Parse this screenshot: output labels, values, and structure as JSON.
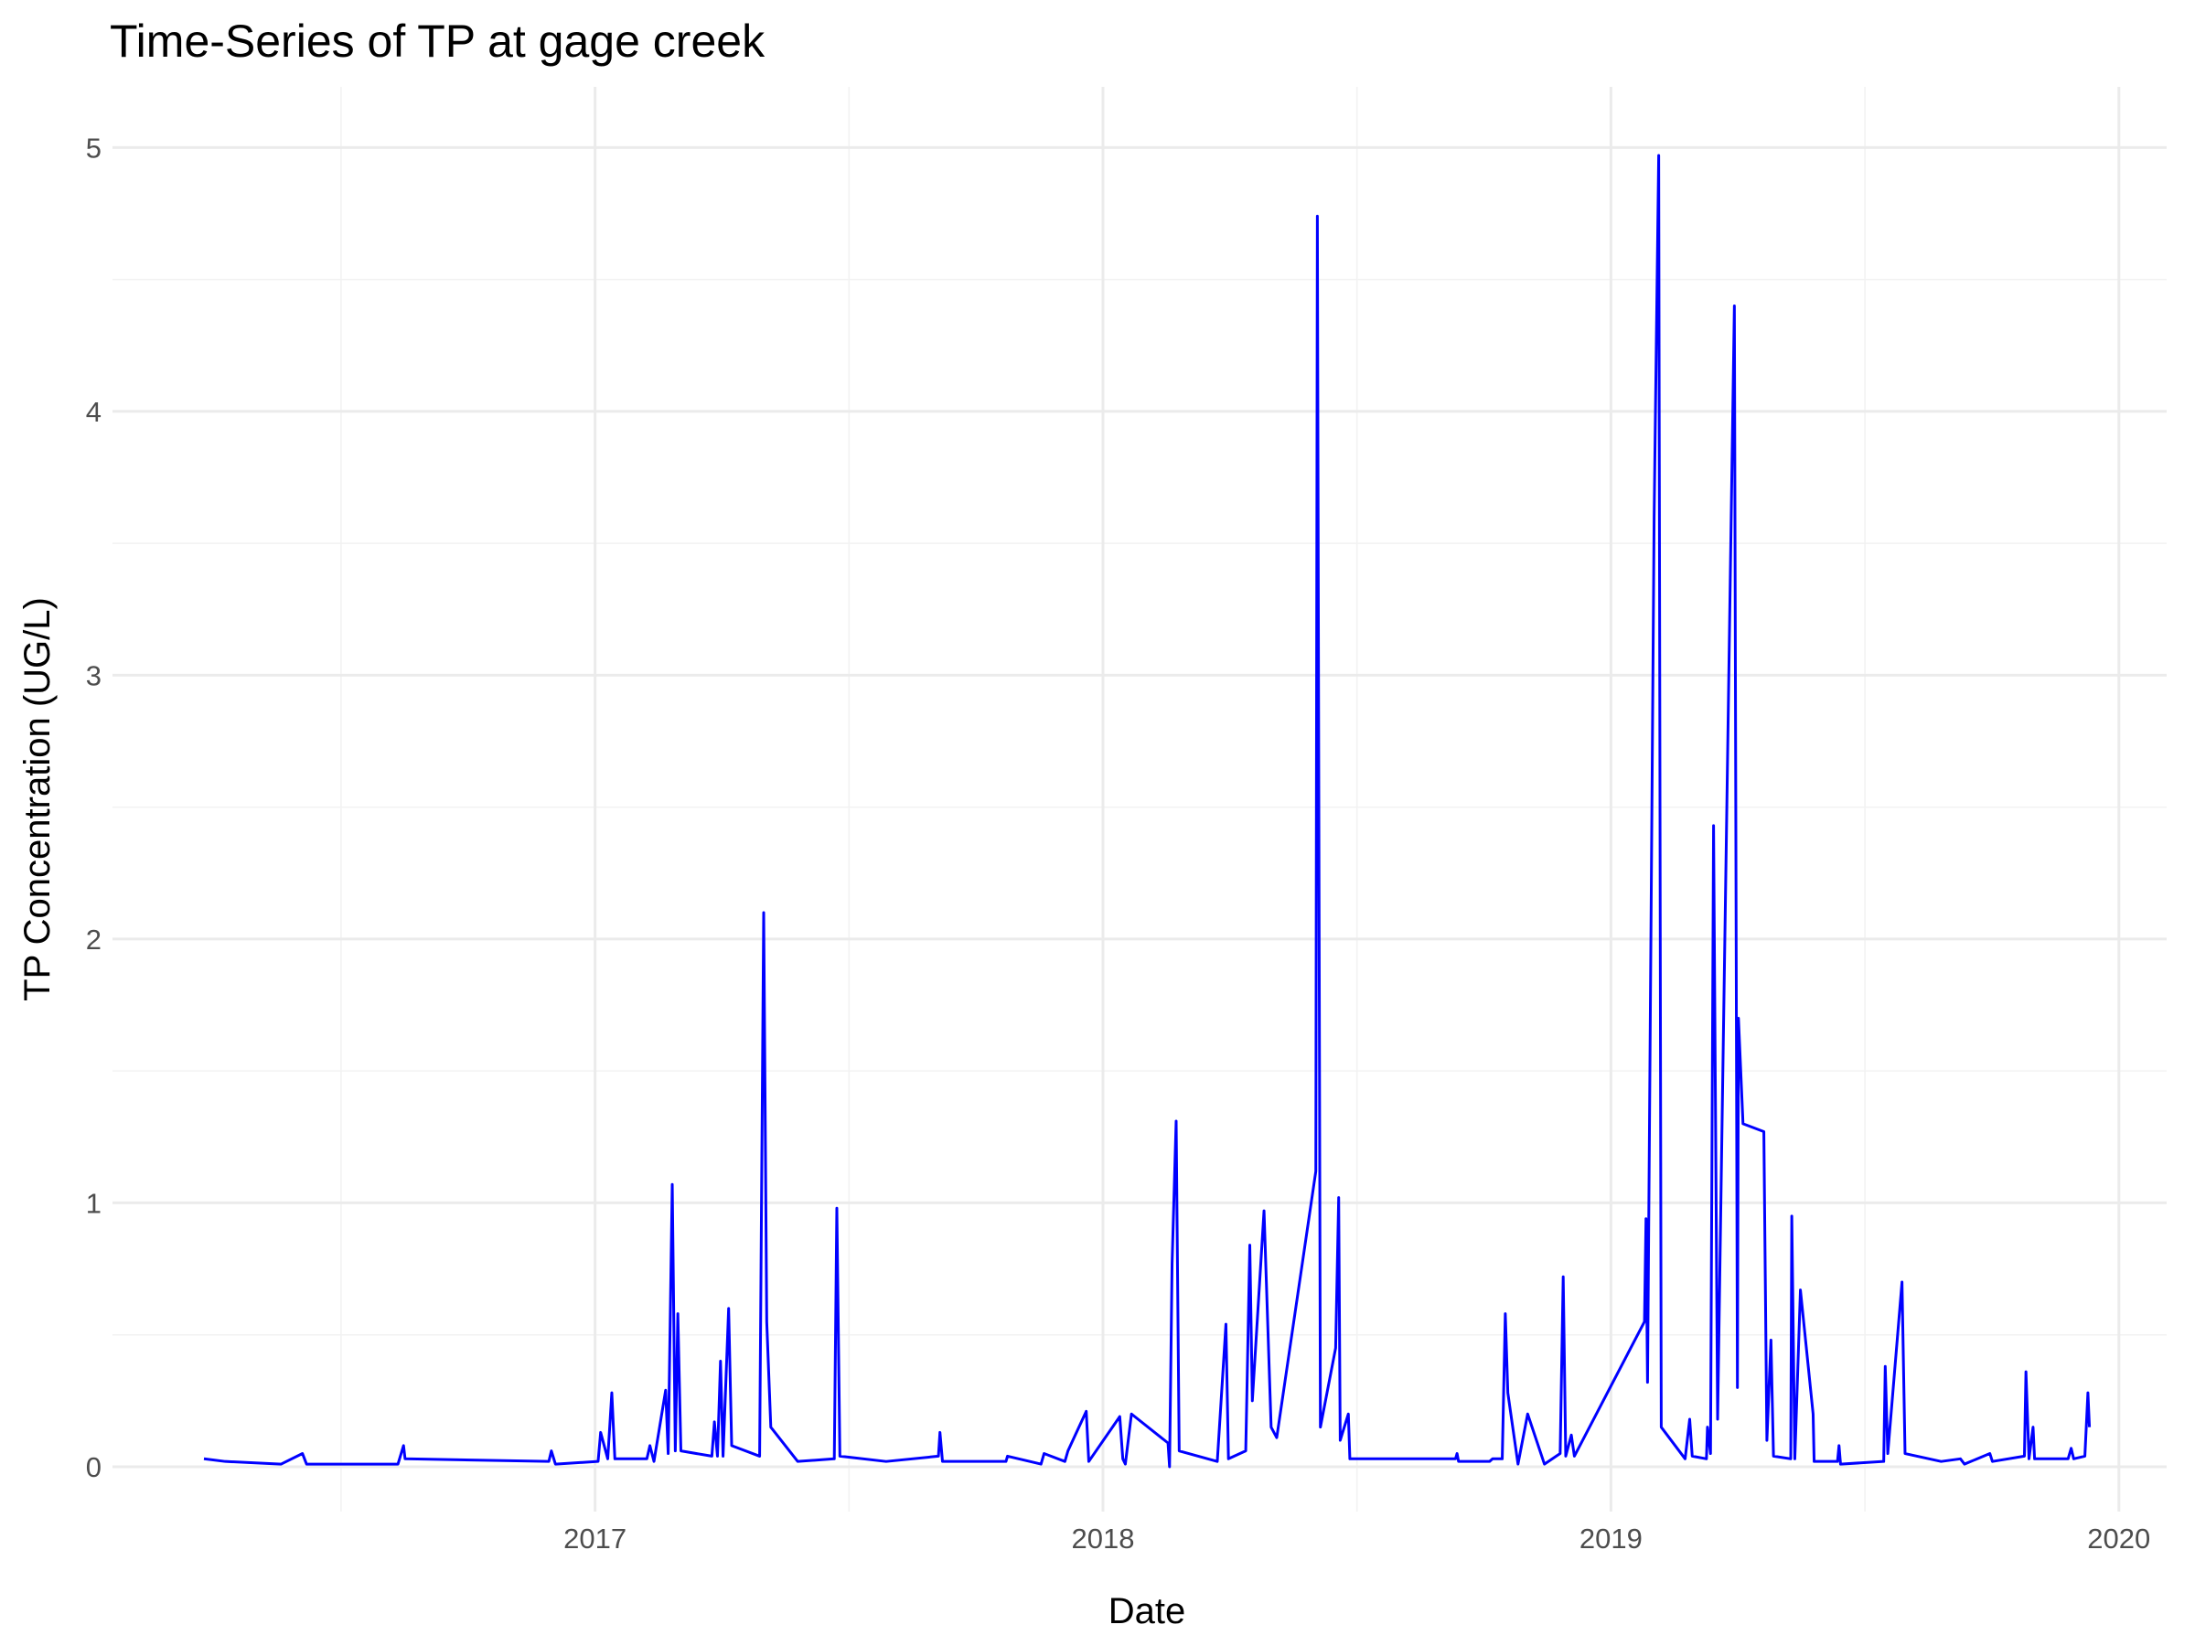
{
  "chart_data": {
    "type": "line",
    "title": "Time-Series of TP at gage creek",
    "x_label": "Date",
    "y_label": "TP Concentration (UG/L)",
    "grid": true,
    "xlim": [
      2016.05,
      2020.094
    ],
    "ylim": [
      -0.17,
      5.23
    ],
    "xticks": [
      2017,
      2018,
      2019,
      2020
    ],
    "yticks": [
      0,
      1,
      2,
      3,
      4,
      5
    ],
    "x": [
      2016.23,
      2016.272,
      2016.382,
      2016.424,
      2016.432,
      2016.612,
      2016.623,
      2016.626,
      2016.909,
      2016.914,
      2016.922,
      2017.006,
      2017.011,
      2017.025,
      2017.033,
      2017.039,
      2017.102,
      2017.108,
      2017.116,
      2017.139,
      2017.144,
      2017.152,
      2017.158,
      2017.163,
      2017.169,
      2017.23,
      2017.235,
      2017.241,
      2017.247,
      2017.252,
      2017.263,
      2017.269,
      2017.324,
      2017.332,
      2017.338,
      2017.346,
      2017.399,
      2017.471,
      2017.476,
      2017.482,
      2017.573,
      2017.676,
      2017.679,
      2017.684,
      2017.809,
      2017.812,
      2017.878,
      2017.884,
      2017.925,
      2017.931,
      2017.967,
      2017.972,
      2018.033,
      2018.039,
      2018.044,
      2018.056,
      2018.128,
      2018.131,
      2018.136,
      2018.144,
      2018.15,
      2018.225,
      2018.242,
      2018.247,
      2018.281,
      2018.283,
      2018.289,
      2018.294,
      2018.317,
      2018.331,
      2018.342,
      2018.419,
      2018.422,
      2018.428,
      2018.458,
      2018.464,
      2018.467,
      2018.483,
      2018.486,
      2018.694,
      2018.697,
      2018.7,
      2018.761,
      2018.767,
      2018.786,
      2018.792,
      2018.797,
      2018.817,
      2018.836,
      2018.869,
      2018.9,
      2018.906,
      2018.911,
      2018.922,
      2018.928,
      2019.066,
      2019.069,
      2019.072,
      2019.085,
      2019.094,
      2019.099,
      2019.146,
      2019.155,
      2019.16,
      2019.188,
      2019.19,
      2019.196,
      2019.202,
      2019.21,
      2019.243,
      2019.249,
      2019.251,
      2019.26,
      2019.301,
      2019.307,
      2019.315,
      2019.32,
      2019.354,
      2019.356,
      2019.362,
      2019.373,
      2019.398,
      2019.4,
      2019.446,
      2019.449,
      2019.452,
      2019.537,
      2019.54,
      2019.545,
      2019.573,
      2019.579,
      2019.65,
      2019.688,
      2019.696,
      2019.746,
      2019.751,
      2019.814,
      2019.817,
      2019.823,
      2019.831,
      2019.834,
      2019.9,
      2019.906,
      2019.911,
      2019.933,
      2019.939,
      2019.942
    ],
    "series": [
      {
        "name": "TP",
        "color": "#0000ff",
        "values": [
          0.03,
          0.02,
          0.01,
          0.05,
          0.01,
          0.01,
          0.08,
          0.03,
          0.02,
          0.06,
          0.01,
          0.02,
          0.13,
          0.03,
          0.28,
          0.03,
          0.03,
          0.08,
          0.02,
          0.29,
          0.05,
          1.07,
          0.06,
          0.58,
          0.06,
          0.04,
          0.17,
          0.04,
          0.4,
          0.04,
          0.6,
          0.08,
          0.04,
          2.1,
          0.55,
          0.15,
          0.02,
          0.03,
          0.98,
          0.04,
          0.02,
          0.04,
          0.13,
          0.02,
          0.02,
          0.04,
          0.01,
          0.05,
          0.02,
          0.06,
          0.21,
          0.02,
          0.19,
          0.03,
          0.01,
          0.2,
          0.09,
          0,
          0.77,
          1.31,
          0.06,
          0.02,
          0.54,
          0.03,
          0.06,
          0.25,
          0.84,
          0.25,
          0.97,
          0.15,
          0.11,
          1.12,
          4.74,
          0.15,
          0.45,
          1.02,
          0.1,
          0.2,
          0.03,
          0.03,
          0.05,
          0.02,
          0.02,
          0.03,
          0.03,
          0.58,
          0.28,
          0.01,
          0.2,
          0.01,
          0.05,
          0.72,
          0.04,
          0.12,
          0.04,
          0.55,
          0.94,
          0.32,
          3.6,
          4.97,
          0.15,
          0.03,
          0.18,
          0.04,
          0.03,
          0.15,
          0.05,
          2.43,
          0.18,
          4.4,
          0.3,
          1.7,
          1.3,
          1.27,
          0.1,
          0.48,
          0.04,
          0.03,
          0.95,
          0.03,
          0.67,
          0.2,
          0.02,
          0.02,
          0.08,
          0.01,
          0.02,
          0.38,
          0.05,
          0.7,
          0.05,
          0.02,
          0.03,
          0.01,
          0.05,
          0.02,
          0.04,
          0.36,
          0.03,
          0.15,
          0.03,
          0.03,
          0.07,
          0.03,
          0.04,
          0.28,
          0.15
        ]
      }
    ]
  }
}
